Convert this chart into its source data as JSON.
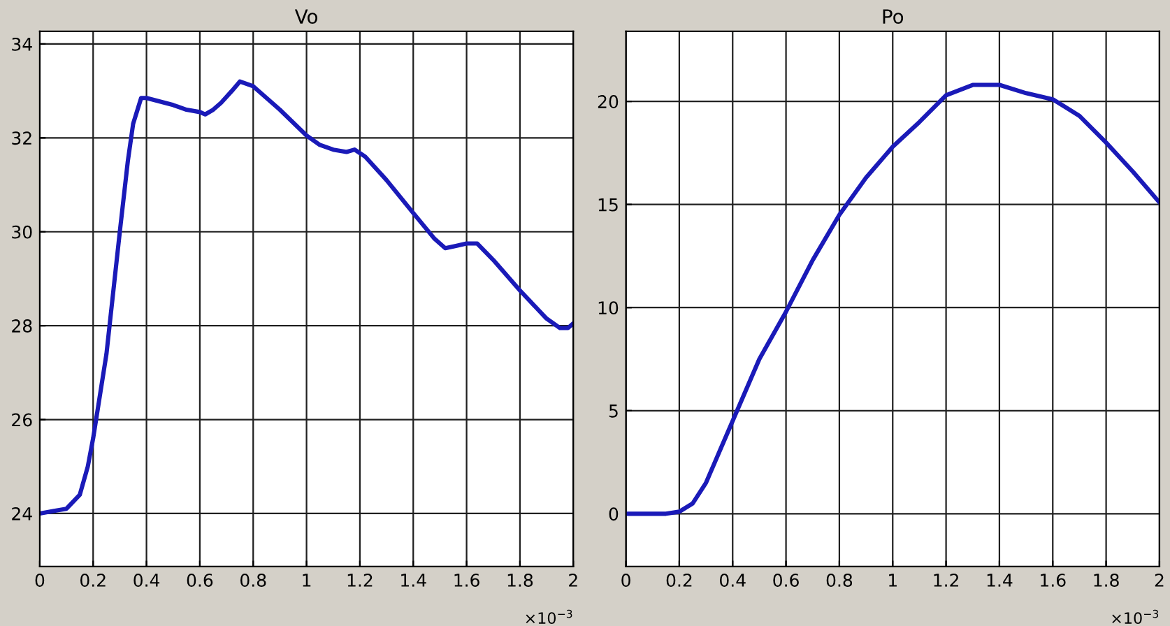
{
  "chart_data": [
    {
      "type": "line",
      "title": "Vo",
      "annotations": [
        "×10$^{−3}$"
      ],
      "grid": true,
      "legend": false,
      "xlim": [
        0,
        2
      ],
      "ylim": [
        22.87,
        34.27
      ],
      "xticks": [
        0,
        0.2,
        0.4,
        0.6,
        0.8,
        1,
        1.2,
        1.4,
        1.6,
        1.8,
        2
      ],
      "yticks": [
        24,
        26,
        28,
        30,
        32,
        34
      ],
      "series": [
        {
          "color": "#1a1ab8",
          "x": [
            0,
            0.05,
            0.1,
            0.15,
            0.18,
            0.2,
            0.25,
            0.3,
            0.33,
            0.35,
            0.38,
            0.4,
            0.5,
            0.55,
            0.6,
            0.62,
            0.65,
            0.68,
            0.72,
            0.75,
            0.8,
            0.9,
            1.0,
            1.05,
            1.1,
            1.15,
            1.18,
            1.22,
            1.3,
            1.4,
            1.48,
            1.52,
            1.56,
            1.6,
            1.64,
            1.7,
            1.8,
            1.9,
            1.95,
            1.98,
            2.0
          ],
          "values": [
            24.0,
            24.05,
            24.1,
            24.4,
            25.0,
            25.6,
            27.4,
            30.0,
            31.5,
            32.3,
            32.85,
            32.85,
            32.7,
            32.6,
            32.55,
            32.5,
            32.6,
            32.75,
            33.0,
            33.2,
            33.1,
            32.6,
            32.05,
            31.85,
            31.75,
            31.7,
            31.75,
            31.6,
            31.1,
            30.4,
            29.85,
            29.65,
            29.7,
            29.75,
            29.75,
            29.4,
            28.75,
            28.15,
            27.95,
            27.95,
            28.05
          ]
        }
      ]
    },
    {
      "type": "line",
      "title": "Po",
      "annotations": [
        "×10$^{−3}$"
      ],
      "grid": true,
      "legend": false,
      "xlim": [
        0,
        2
      ],
      "ylim": [
        -2.56,
        23.4
      ],
      "xticks": [
        0,
        0.2,
        0.4,
        0.6,
        0.8,
        1,
        1.2,
        1.4,
        1.6,
        1.8,
        2
      ],
      "yticks": [
        0,
        5,
        10,
        15,
        20
      ],
      "series": [
        {
          "color": "#1a1ab8",
          "x": [
            0,
            0.15,
            0.2,
            0.25,
            0.3,
            0.35,
            0.4,
            0.5,
            0.6,
            0.7,
            0.8,
            0.9,
            1.0,
            1.1,
            1.2,
            1.3,
            1.4,
            1.5,
            1.6,
            1.7,
            1.8,
            1.9,
            2.0
          ],
          "values": [
            0,
            0,
            0.1,
            0.5,
            1.5,
            3,
            4.5,
            7.5,
            9.8,
            12.3,
            14.5,
            16.3,
            17.8,
            19.0,
            20.3,
            20.8,
            20.8,
            20.4,
            20.1,
            19.3,
            18.0,
            16.6,
            15.1
          ]
        }
      ]
    }
  ]
}
